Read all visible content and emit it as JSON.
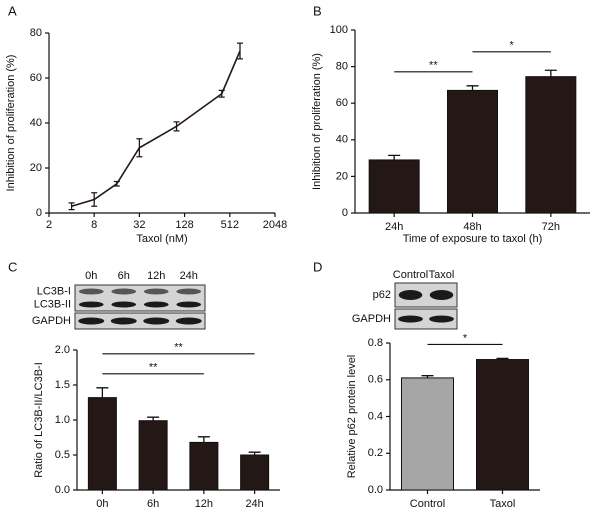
{
  "chart_data": [
    {
      "type": "line",
      "panel_label": "A",
      "x_label": "Taxol (nM)",
      "y_label": "Inhibition of proliferation (%)",
      "x": [
        4,
        8,
        16,
        32,
        100,
        400,
        700
      ],
      "values": [
        3,
        6,
        13,
        29,
        38.5,
        53,
        72
      ],
      "errors": [
        1.5,
        3,
        1,
        4,
        2,
        1.5,
        3.5
      ],
      "color": "#231815",
      "log_x": true,
      "xlim": [
        2,
        2048
      ],
      "xticks": [
        2,
        8,
        32,
        128,
        512,
        2048
      ],
      "ylim": [
        0,
        80
      ],
      "yticks": [
        0,
        20,
        40,
        60,
        80
      ]
    },
    {
      "type": "bar",
      "panel_label": "B",
      "x_label": "Time of exposure to taxol (h)",
      "y_label": "Inhibition of proliferation (%)",
      "categories": [
        "24h",
        "48h",
        "72h"
      ],
      "values": [
        29,
        67,
        74.5
      ],
      "errors": [
        2.5,
        2.5,
        3.5
      ],
      "color": "#231815",
      "ylim": [
        0,
        100
      ],
      "yticks": [
        0,
        20,
        40,
        60,
        80,
        100
      ],
      "annotations": [
        {
          "label": "**",
          "from": 0,
          "to": 1
        },
        {
          "label": "*",
          "from": 1,
          "to": 2
        }
      ]
    },
    {
      "type": "bar",
      "panel_label": "C",
      "y_label": "Ratio of LC3B-II/LC3B-I",
      "blot": {
        "lanes": [
          "0h",
          "6h",
          "12h",
          "24h"
        ],
        "rows": [
          "LC3B-I",
          "LC3B-II",
          "GAPDH"
        ]
      },
      "categories": [
        "0h",
        "6h",
        "12h",
        "24h"
      ],
      "values": [
        1.32,
        0.99,
        0.68,
        0.5
      ],
      "errors": [
        0.14,
        0.05,
        0.08,
        0.04
      ],
      "color": "#231815",
      "ylim": [
        0,
        2
      ],
      "yticks": [
        {
          "value": 0,
          "label": "0.0"
        },
        0.5,
        {
          "value": 1,
          "label": "1.0"
        },
        1.5,
        {
          "value": 2,
          "label": "2.0"
        }
      ],
      "annotations": [
        {
          "label": "**",
          "from": 0,
          "to": 2
        },
        {
          "label": "**",
          "from": 0,
          "to": 3
        }
      ]
    },
    {
      "type": "bar",
      "panel_label": "D",
      "y_label": "Relative p62 protein level",
      "blot": {
        "lanes": [
          "Control",
          "Taxol"
        ],
        "rows": [
          "p62",
          "GAPDH"
        ]
      },
      "categories": [
        "Control",
        "Taxol"
      ],
      "values": [
        0.61,
        0.71
      ],
      "errors": [
        0.012,
        0.006
      ],
      "colors": [
        "#a6a6a6",
        "#231815"
      ],
      "ylim": [
        0,
        0.8
      ],
      "yticks": [
        {
          "value": 0,
          "label": "0.0"
        },
        0.2,
        0.4,
        0.6,
        0.8
      ],
      "annotations": [
        {
          "label": "*",
          "from": 0,
          "to": 1
        }
      ]
    }
  ]
}
